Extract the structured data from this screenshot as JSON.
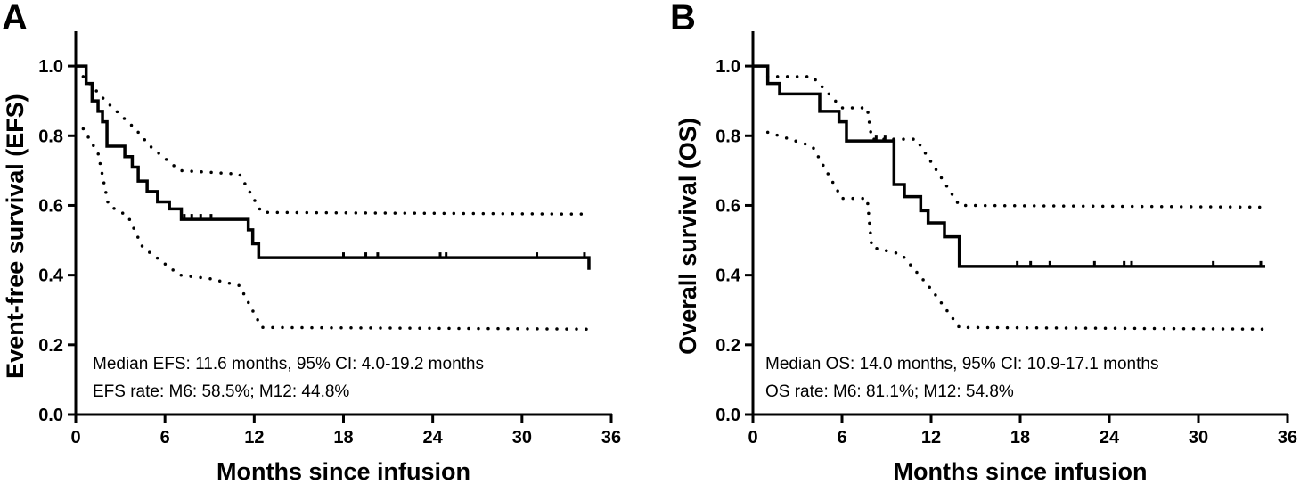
{
  "chart_data": [
    {
      "type": "line",
      "panel": "A",
      "xlabel": "Months since infusion",
      "ylabel": "Event-free survival (EFS)",
      "xlim": [
        0,
        36
      ],
      "ylim": [
        0,
        1.1
      ],
      "xticks": [
        "0",
        "6",
        "12",
        "18",
        "24",
        "30",
        "36"
      ],
      "yticks": [
        "0.0",
        "0.2",
        "0.4",
        "0.6",
        "0.8",
        "1.0"
      ],
      "grid": false,
      "annotations": [
        "Median EFS: 11.6 months, 95% CI: 4.0-19.2 months",
        "EFS rate: M6: 58.5%; M12: 44.8%"
      ],
      "series": [
        {
          "role": "estimate",
          "style": "step-solid",
          "x": [
            0,
            0.7,
            1.1,
            1.5,
            1.8,
            2.1,
            2.8,
            3.3,
            3.8,
            4.2,
            4.8,
            5.5,
            6.3,
            7.1,
            11.2,
            11.6,
            11.9,
            12.3,
            34.5
          ],
          "y": [
            1.0,
            0.95,
            0.9,
            0.87,
            0.84,
            0.77,
            0.77,
            0.74,
            0.71,
            0.67,
            0.64,
            0.61,
            0.59,
            0.56,
            0.56,
            0.53,
            0.49,
            0.45,
            0.415
          ]
        },
        {
          "role": "upper-ci",
          "style": "dotted",
          "x": [
            0.5,
            2,
            4,
            5,
            7,
            11,
            12.5,
            34.5
          ],
          "y": [
            0.97,
            0.9,
            0.82,
            0.77,
            0.7,
            0.69,
            0.58,
            0.575
          ]
        },
        {
          "role": "lower-ci",
          "style": "dotted",
          "x": [
            0.5,
            1.5,
            2.2,
            3.5,
            4.5,
            7,
            9,
            11,
            12.5,
            34.5
          ],
          "y": [
            0.82,
            0.75,
            0.6,
            0.57,
            0.48,
            0.4,
            0.39,
            0.37,
            0.25,
            0.245
          ]
        }
      ],
      "censor_x": [
        7.3,
        7.8,
        8.4,
        9.1,
        18.0,
        19.5,
        20.3,
        24.5,
        24.9,
        31.0,
        34.2
      ]
    },
    {
      "type": "line",
      "panel": "B",
      "xlabel": "Months since infusion",
      "ylabel": "Overall survival (OS)",
      "xlim": [
        0,
        36
      ],
      "ylim": [
        0,
        1.1
      ],
      "xticks": [
        "0",
        "6",
        "12",
        "18",
        "24",
        "30",
        "36"
      ],
      "yticks": [
        "0.0",
        "0.2",
        "0.4",
        "0.6",
        "0.8",
        "1.0"
      ],
      "grid": false,
      "annotations": [
        "Median OS: 14.0 months, 95% CI: 10.9-17.1 months",
        "OS rate: M6: 81.1%; M12: 54.8%"
      ],
      "series": [
        {
          "role": "estimate",
          "style": "step-solid",
          "x": [
            0,
            1,
            1.8,
            4,
            4.5,
            5.8,
            6.3,
            7.9,
            9.5,
            10.2,
            11.3,
            11.8,
            12.9,
            13.9,
            34.5
          ],
          "y": [
            1.0,
            0.95,
            0.92,
            0.92,
            0.87,
            0.84,
            0.785,
            0.785,
            0.66,
            0.625,
            0.585,
            0.55,
            0.51,
            0.425,
            0.425
          ]
        },
        {
          "role": "upper-ci",
          "style": "dotted",
          "x": [
            1,
            4,
            6,
            7.7,
            8,
            11,
            13.9,
            34.5
          ],
          "y": [
            0.97,
            0.97,
            0.88,
            0.88,
            0.79,
            0.79,
            0.6,
            0.595
          ]
        },
        {
          "role": "lower-ci",
          "style": "dotted",
          "x": [
            1,
            4,
            6,
            7.7,
            8,
            10,
            12,
            13.9,
            34.5
          ],
          "y": [
            0.81,
            0.77,
            0.62,
            0.62,
            0.48,
            0.46,
            0.36,
            0.25,
            0.245
          ]
        }
      ],
      "censor_x": [
        8.3,
        8.9,
        17.8,
        18.7,
        20.0,
        23.0,
        25.0,
        25.5,
        31.0,
        34.2
      ]
    }
  ],
  "panels": {
    "a_letter": "A",
    "b_letter": "B"
  }
}
